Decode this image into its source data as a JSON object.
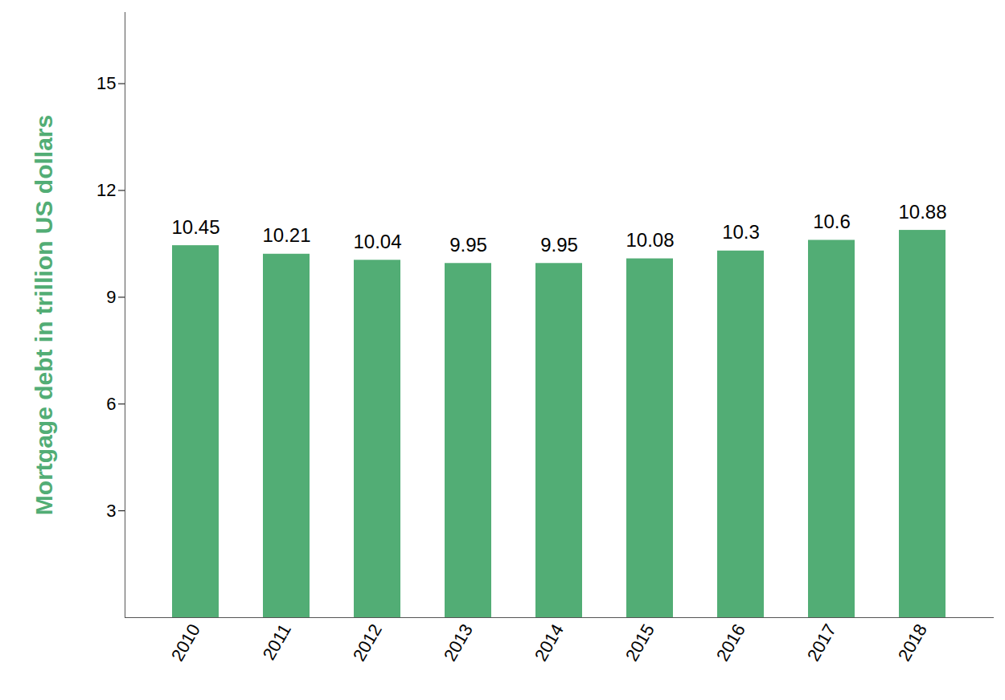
{
  "chart_data": {
    "type": "bar",
    "ylabel": "Mortgage debt in trillion US dollars",
    "categories": [
      "2010",
      "2011",
      "2012",
      "2013",
      "2014",
      "2015",
      "2016",
      "2017",
      "2018"
    ],
    "values": [
      10.45,
      10.21,
      10.04,
      9.95,
      9.95,
      10.08,
      10.3,
      10.6,
      10.88
    ],
    "color": "#52ad75",
    "ylim": [
      0,
      17
    ],
    "yticks": [
      3,
      6,
      9,
      12,
      15
    ],
    "grid": false,
    "data_labels": true
  }
}
